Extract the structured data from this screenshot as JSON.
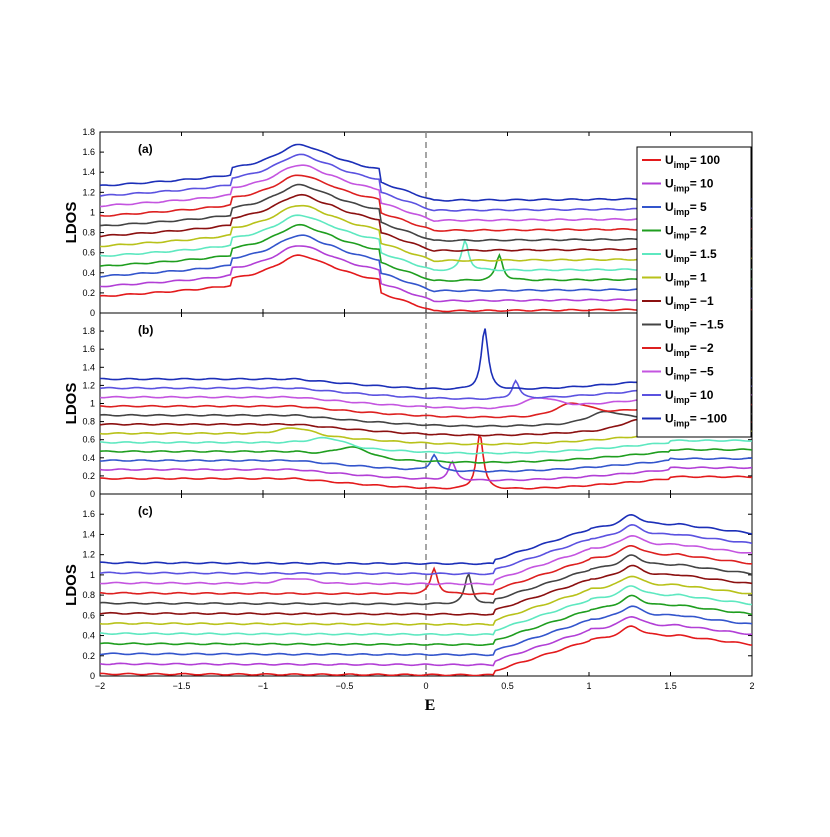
{
  "chart_data": {
    "type": "line",
    "xlabel": "E",
    "ylabel": "LDOS",
    "xlim": [
      -2,
      2
    ],
    "xticks": [
      "−2",
      "−1.5",
      "−1",
      "−0.5",
      "0",
      "0.5",
      "1",
      "1.5",
      "2"
    ],
    "reference_line_x": 0,
    "legend": {
      "placement": "right",
      "entries": [
        {
          "prefix": "U",
          "sub": "imp",
          "value": "= 100",
          "color": "#e31a1c"
        },
        {
          "prefix": "U",
          "sub": "imp",
          "value": "= 10",
          "color": "#b23fd6"
        },
        {
          "prefix": "U",
          "sub": "imp",
          "value": "= 5",
          "color": "#3355cc"
        },
        {
          "prefix": "U",
          "sub": "imp",
          "value": "= 2",
          "color": "#1f9e1f"
        },
        {
          "prefix": "U",
          "sub": "imp",
          "value": "= 1.5",
          "color": "#5ee8c0"
        },
        {
          "prefix": "U",
          "sub": "imp",
          "value": "= 1",
          "color": "#b8c21a"
        },
        {
          "prefix": "U",
          "sub": "imp",
          "value": "= −1",
          "color": "#8b1010"
        },
        {
          "prefix": "U",
          "sub": "imp",
          "value": "= −1.5",
          "color": "#444444"
        },
        {
          "prefix": "U",
          "sub": "imp",
          "value": "= −2",
          "color": "#dd2020"
        },
        {
          "prefix": "U",
          "sub": "imp",
          "value": "= −5",
          "color": "#c455e0"
        },
        {
          "prefix": "U",
          "sub": "imp",
          "value": "= 10",
          "color": "#5b52e0"
        },
        {
          "prefix": "U",
          "sub": "imp",
          "value": "= −100",
          "color": "#1c2fb8"
        }
      ]
    },
    "panels": [
      {
        "label": "(a)",
        "ylim": [
          0,
          1.8
        ],
        "yticks": [
          "0",
          "0.2",
          "0.4",
          "0.6",
          "0.8",
          "1",
          "1.2",
          "1.4",
          "1.6",
          "1.8"
        ],
        "shape": "vanhove_left",
        "series": [
          {
            "offset": 0.0
          },
          {
            "offset": 0.1
          },
          {
            "offset": 0.2
          },
          {
            "offset": 0.3,
            "peak": [
              0.45,
              0.25
            ]
          },
          {
            "offset": 0.4,
            "peak": [
              0.24,
              0.3
            ]
          },
          {
            "offset": 0.5
          },
          {
            "offset": 0.6
          },
          {
            "offset": 0.7
          },
          {
            "offset": 0.8
          },
          {
            "offset": 0.9
          },
          {
            "offset": 1.0
          },
          {
            "offset": 1.1
          }
        ]
      },
      {
        "label": "(b)",
        "ylim": [
          0,
          2.0
        ],
        "yticks": [
          "0",
          "0.2",
          "0.4",
          "0.6",
          "0.8",
          "1",
          "1.2",
          "1.4",
          "1.6",
          "1.8"
        ],
        "shape": "flat_bound",
        "series": [
          {
            "offset": 0.0,
            "peak": [
              0.33,
              0.62
            ]
          },
          {
            "offset": 0.1,
            "peak": [
              0.16,
              0.2
            ]
          },
          {
            "offset": 0.2,
            "peak": [
              0.05,
              0.18
            ]
          },
          {
            "offset": 0.3,
            "bump": [
              -0.45,
              0.1
            ]
          },
          {
            "offset": 0.4,
            "bump": [
              -0.6,
              0.08
            ]
          },
          {
            "offset": 0.5,
            "bump": [
              -0.8,
              0.06
            ]
          },
          {
            "offset": 0.6,
            "bump": [
              1.3,
              0.08
            ]
          },
          {
            "offset": 0.7,
            "bump": [
              1.1,
              0.1
            ]
          },
          {
            "offset": 0.8,
            "bump": [
              0.9,
              0.12
            ]
          },
          {
            "offset": 0.9,
            "bump": [
              0.7,
              0.1
            ]
          },
          {
            "offset": 1.0,
            "peak": [
              0.55,
              0.2
            ]
          },
          {
            "offset": 1.1,
            "peak": [
              0.36,
              0.68
            ]
          }
        ]
      },
      {
        "label": "(c)",
        "ylim": [
          0,
          1.8
        ],
        "yticks": [
          "0",
          "0.2",
          "0.4",
          "0.6",
          "0.8",
          "1",
          "1.2",
          "1.4",
          "1.6"
        ],
        "shape": "vanhove_right",
        "series": [
          {
            "offset": 0.0
          },
          {
            "offset": 0.1
          },
          {
            "offset": 0.2
          },
          {
            "offset": 0.3
          },
          {
            "offset": 0.4
          },
          {
            "offset": 0.5
          },
          {
            "offset": 0.6
          },
          {
            "offset": 0.7,
            "peak": [
              0.26,
              0.3
            ]
          },
          {
            "offset": 0.8,
            "peak": [
              0.05,
              0.25
            ]
          },
          {
            "offset": 0.9,
            "bump": [
              -0.8,
              0.05
            ]
          },
          {
            "offset": 1.0
          },
          {
            "offset": 1.1
          }
        ]
      }
    ]
  }
}
